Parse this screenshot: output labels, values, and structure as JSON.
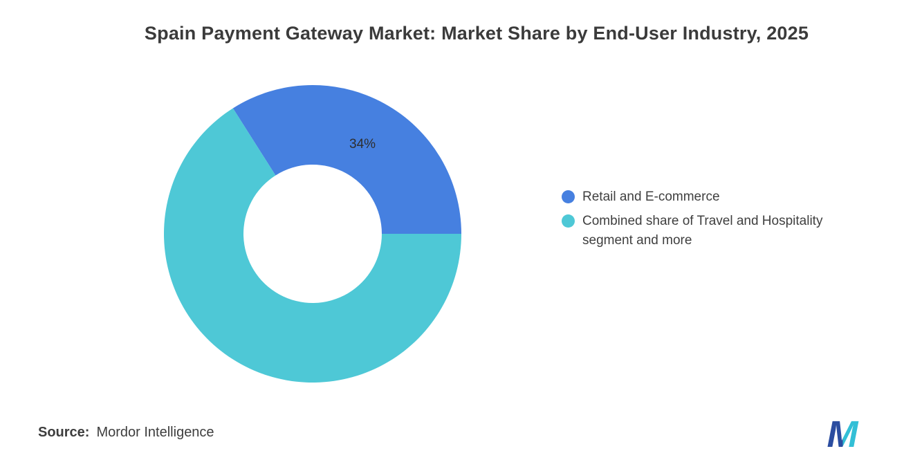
{
  "title": "Spain Payment Gateway Market: Market Share by End-User Industry, 2025",
  "chart_data": {
    "type": "pie",
    "subtype": "donut",
    "title": "Spain Payment Gateway Market: Market Share by End-User Industry, 2025",
    "legend_position": "right",
    "start_angle_deg": 122.4,
    "slices": [
      {
        "label": "Retail and E-commerce",
        "value": 34,
        "data_label": "34%",
        "color": "#4680E0"
      },
      {
        "label": "Combined share of Travel and Hospitality segment and more",
        "value": 66,
        "data_label": "",
        "color": "#4EC8D6"
      }
    ]
  },
  "source": {
    "label": "Source:",
    "value": "Mordor Intelligence"
  },
  "logo": {
    "name": "mordor-intelligence-logo",
    "letter": "M",
    "navy": "#2B4DA0",
    "teal": "#33BFD6"
  }
}
